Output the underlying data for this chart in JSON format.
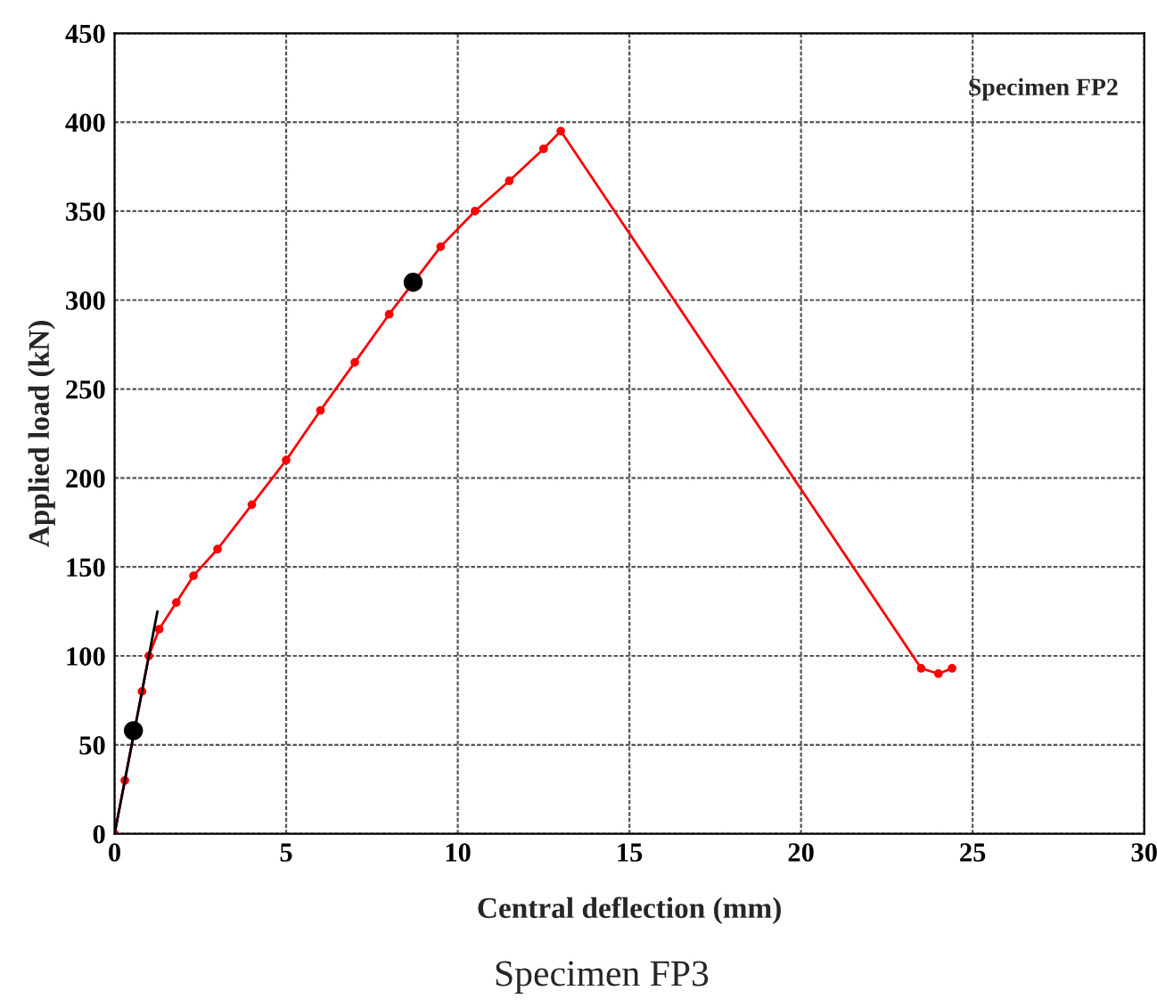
{
  "chart_data": {
    "type": "line",
    "xlabel": "Central deflection (mm)",
    "ylabel": "Applied load (kN)",
    "xlim": [
      0,
      30
    ],
    "ylim": [
      0,
      450
    ],
    "xticks": [
      0,
      5,
      10,
      15,
      20,
      25,
      30
    ],
    "yticks": [
      0,
      50,
      100,
      150,
      200,
      250,
      300,
      350,
      400,
      450
    ],
    "grid": true,
    "legend": false,
    "series": [
      {
        "color": "#ff0000",
        "marker": "circle",
        "x": [
          0,
          0.3,
          0.8,
          1.0,
          1.3,
          1.8,
          2.3,
          3,
          4,
          5,
          6,
          7,
          8,
          9.5,
          10.5,
          11.5,
          12.5,
          13,
          23.5,
          24,
          24.4
        ],
        "values": [
          0,
          30,
          80,
          100,
          115,
          130,
          145,
          160,
          185,
          210,
          238,
          265,
          292,
          330,
          350,
          367,
          385,
          395,
          93,
          90,
          93
        ]
      },
      {
        "type": "line",
        "color": "#000000",
        "marker": "none",
        "x": [
          0,
          1.25
        ],
        "values": [
          0,
          125
        ]
      },
      {
        "type": "scatter",
        "color": "#000000",
        "marker": "circle",
        "x": [
          0.55
        ],
        "values": [
          58
        ]
      },
      {
        "type": "scatter",
        "color": "#000000",
        "marker": "circle",
        "x": [
          8.7
        ],
        "values": [
          310
        ]
      }
    ],
    "annotations": [
      "Specimen FP2",
      "Specimen FP3"
    ]
  }
}
